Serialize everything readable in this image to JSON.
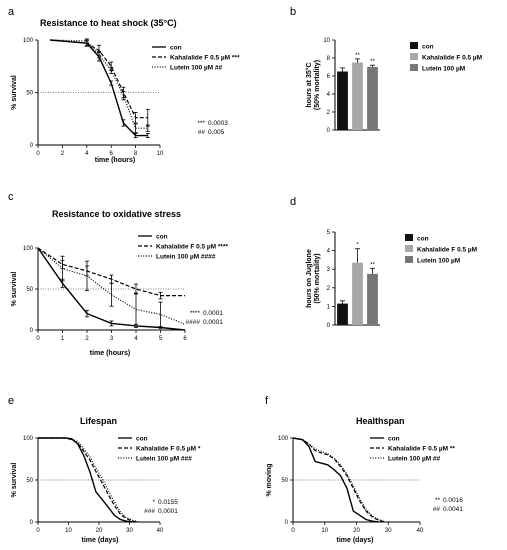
{
  "chart_data": [
    {
      "panel": "a",
      "type": "line",
      "title": "Resistance to heat shock (35°C)",
      "xlabel": "time (hours)",
      "ylabel": "% survival",
      "xlim": [
        0,
        10
      ],
      "ylim": [
        0,
        100
      ],
      "xticks": [
        0,
        2,
        4,
        6,
        8,
        10
      ],
      "yticks": [
        0,
        50,
        100
      ],
      "refline": 50,
      "series": [
        {
          "name": "con",
          "style": "solid",
          "x": [
            1,
            4,
            5,
            6,
            7,
            8,
            9
          ],
          "y": [
            100,
            97,
            84,
            59,
            21,
            9,
            9
          ],
          "err": [
            0,
            2,
            4,
            2,
            3,
            2,
            2
          ]
        },
        {
          "name": "Kahalalide F 0.5  µM ***",
          "style": "dashed",
          "x": [
            1,
            4,
            5,
            6,
            7,
            8,
            9
          ],
          "y": [
            100,
            97,
            90,
            75,
            50,
            26,
            26
          ],
          "err": [
            0,
            3,
            5,
            4,
            5,
            5,
            8
          ]
        },
        {
          "name": "Lutein 100 µM ##",
          "style": "dotted",
          "x": [
            1,
            4,
            5,
            6,
            7,
            8,
            9
          ],
          "y": [
            100,
            99,
            86,
            71,
            47,
            16,
            16
          ],
          "err": [
            0,
            2,
            3,
            3,
            4,
            4,
            3
          ]
        }
      ],
      "annotations": [
        {
          "label": "***",
          "value": "0.0003"
        },
        {
          "label": "##",
          "value": "0.005"
        }
      ]
    },
    {
      "panel": "b",
      "type": "bar",
      "title": "",
      "ylabel": "hours at 35°C (50% mortality)",
      "ylim": [
        0,
        10
      ],
      "yticks": [
        0,
        2,
        4,
        6,
        8,
        10
      ],
      "categories": [
        "con",
        "Kahalalide F 0.5  µM",
        "Lutein 100 µM"
      ],
      "values": [
        6.5,
        7.5,
        7.0
      ],
      "errors": [
        0.4,
        0.4,
        0.2
      ],
      "significance": [
        "",
        "**",
        "**"
      ],
      "colors": [
        "#111111",
        "#a8a8a8",
        "#777777"
      ]
    },
    {
      "panel": "c",
      "type": "line",
      "title": "Resistance to oxidative stress",
      "xlabel": "time (hours)",
      "ylabel": "% survival",
      "xlim": [
        0,
        6
      ],
      "ylim": [
        0,
        100
      ],
      "xticks": [
        0,
        1,
        2,
        3,
        4,
        5,
        6
      ],
      "yticks": [
        0,
        50,
        100
      ],
      "refline": 50,
      "series": [
        {
          "name": "con",
          "style": "solid",
          "x": [
            0,
            1,
            2,
            3,
            4,
            5,
            6
          ],
          "y": [
            100,
            57,
            20,
            8,
            5,
            3,
            0
          ],
          "err": [
            0,
            5,
            4,
            3,
            2,
            1,
            0
          ]
        },
        {
          "name": "Kahalalide F 0.5  µM ****",
          "style": "dashed",
          "x": [
            0,
            1,
            2,
            3,
            4,
            5,
            6
          ],
          "y": [
            100,
            80,
            72,
            62,
            50,
            42,
            42
          ],
          "err": [
            0,
            5,
            6,
            5,
            6,
            4,
            0
          ]
        },
        {
          "name": "Lutein 100 µM ####",
          "style": "dotted",
          "x": [
            0,
            1,
            2,
            3,
            4,
            5,
            6
          ],
          "y": [
            100,
            75,
            66,
            43,
            25,
            19,
            7
          ],
          "err": [
            0,
            15,
            18,
            14,
            20,
            15,
            0
          ]
        }
      ],
      "annotations": [
        {
          "label": "****",
          "value": "0.0001"
        },
        {
          "label": "####",
          "value": "0.0001"
        }
      ]
    },
    {
      "panel": "d",
      "type": "bar",
      "title": "",
      "ylabel": "hours on Juglone (50% mortality)",
      "ylim": [
        0,
        5
      ],
      "yticks": [
        0,
        1,
        2,
        3,
        4,
        5
      ],
      "categories": [
        "con",
        "Kahalalide F 0.5 µM",
        "Lutein 100 µM"
      ],
      "values": [
        1.15,
        3.35,
        2.75
      ],
      "errors": [
        0.15,
        0.75,
        0.3
      ],
      "significance": [
        "",
        "*",
        "**"
      ],
      "colors": [
        "#111111",
        "#a8a8a8",
        "#777777"
      ]
    },
    {
      "panel": "e",
      "type": "line",
      "title": "Lifespan",
      "xlabel": "time (days)",
      "ylabel": "% survival",
      "xlim": [
        0,
        40
      ],
      "ylim": [
        0,
        100
      ],
      "xticks": [
        0,
        10,
        20,
        30,
        40
      ],
      "yticks": [
        0,
        50,
        100
      ],
      "refline": 50,
      "series": [
        {
          "name": "con",
          "style": "solid",
          "x": [
            0,
            6,
            9,
            11,
            13,
            15,
            17,
            19,
            21,
            23,
            25,
            27,
            29,
            31
          ],
          "y": [
            100,
            100,
            100,
            99,
            93,
            79,
            60,
            36,
            27,
            18,
            8,
            3,
            1,
            0
          ]
        },
        {
          "name": "Kahalalide F 0.5 µM *",
          "style": "dashed",
          "x": [
            0,
            6,
            9,
            11,
            13,
            15,
            17,
            19,
            21,
            23,
            25,
            27,
            29,
            31,
            33
          ],
          "y": [
            100,
            100,
            100,
            98,
            94,
            84,
            74,
            60,
            47,
            33,
            20,
            9,
            4,
            1,
            0
          ]
        },
        {
          "name": "Lutein 100 µM ###",
          "style": "dotted",
          "x": [
            0,
            6,
            9,
            11,
            13,
            15,
            17,
            19,
            21,
            23,
            25,
            27,
            29,
            31,
            33
          ],
          "y": [
            100,
            100,
            100,
            99,
            96,
            87,
            78,
            64,
            52,
            38,
            24,
            12,
            5,
            2,
            0
          ]
        }
      ],
      "annotations": [
        {
          "label": "*",
          "value": "0.0155"
        },
        {
          "label": "###",
          "value": "0.0001"
        }
      ]
    },
    {
      "panel": "f",
      "type": "line",
      "title": "Healthspan",
      "xlabel": "time (days)",
      "ylabel": "% moving",
      "xlim": [
        0,
        40
      ],
      "ylim": [
        0,
        100
      ],
      "xticks": [
        0,
        10,
        20,
        30,
        40
      ],
      "yticks": [
        0,
        50,
        100
      ],
      "refline": 50,
      "series": [
        {
          "name": "con",
          "style": "solid",
          "x": [
            0,
            3,
            5,
            7,
            9,
            11,
            13,
            15,
            17,
            19,
            21,
            23,
            25,
            27
          ],
          "y": [
            100,
            98,
            90,
            72,
            70,
            68,
            62,
            55,
            40,
            13,
            8,
            3,
            1,
            0
          ]
        },
        {
          "name": "Kahalalide F 0.5 µM **",
          "style": "dashed",
          "x": [
            0,
            3,
            5,
            7,
            9,
            11,
            13,
            15,
            17,
            19,
            21,
            23,
            25,
            27,
            29
          ],
          "y": [
            100,
            98,
            93,
            85,
            82,
            80,
            75,
            66,
            55,
            40,
            25,
            13,
            6,
            2,
            0
          ]
        },
        {
          "name": "Lutein 100 µM ##",
          "style": "dotted",
          "x": [
            0,
            3,
            5,
            7,
            9,
            11,
            13,
            15,
            17,
            19,
            21,
            23,
            25,
            27,
            29
          ],
          "y": [
            100,
            98,
            93,
            87,
            84,
            81,
            76,
            68,
            57,
            43,
            28,
            15,
            7,
            3,
            0
          ]
        }
      ],
      "annotations": [
        {
          "label": "**",
          "value": "0.0016"
        },
        {
          "label": "##",
          "value": "0.0041"
        }
      ]
    }
  ]
}
